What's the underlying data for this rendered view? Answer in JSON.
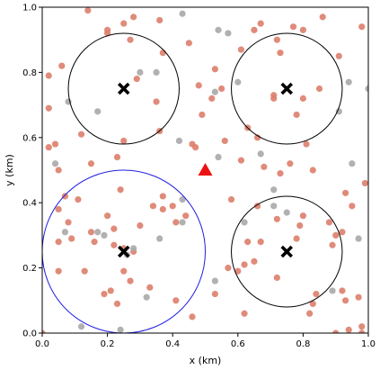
{
  "chart_data": {
    "type": "scatter",
    "title": "",
    "xlabel": "x (km)",
    "ylabel": "y (km)",
    "xlim": [
      0.0,
      1.0
    ],
    "ylim": [
      0.0,
      1.0
    ],
    "xticks": [
      "0.0",
      "0.2",
      "0.4",
      "0.6",
      "0.8",
      "1.0"
    ],
    "yticks": [
      "0.0",
      "0.2",
      "0.4",
      "0.6",
      "0.8",
      "1.0"
    ],
    "grid": false,
    "legend": null,
    "colors": {
      "salmon": "#dd7e6b",
      "gray": "#a9a9a9",
      "black": "#000000",
      "blue": "#1f1fe0",
      "red": "#ee1111"
    },
    "salmon_points": [
      [
        0.14,
        0.99
      ],
      [
        0.28,
        0.97
      ],
      [
        0.36,
        0.96
      ],
      [
        0.25,
        0.95
      ],
      [
        0.2,
        0.93
      ],
      [
        0.2,
        0.92
      ],
      [
        0.27,
        0.9
      ],
      [
        0.45,
        0.89
      ],
      [
        0.06,
        0.82
      ],
      [
        0.02,
        0.79
      ],
      [
        0.29,
        0.78
      ],
      [
        0.37,
        0.86
      ],
      [
        0.48,
        0.76
      ],
      [
        0.52,
        0.72
      ],
      [
        0.49,
        0.67
      ],
      [
        0.55,
        0.75
      ],
      [
        0.53,
        0.81
      ],
      [
        0.65,
        0.93
      ],
      [
        0.67,
        0.95
      ],
      [
        0.77,
        0.94
      ],
      [
        0.72,
        0.9
      ],
      [
        0.73,
        0.86
      ],
      [
        0.8,
        0.93
      ],
      [
        0.86,
        0.97
      ],
      [
        0.91,
        0.85
      ],
      [
        0.98,
        0.94
      ],
      [
        0.61,
        0.87
      ],
      [
        0.71,
        0.73
      ],
      [
        0.71,
        0.72
      ],
      [
        0.8,
        0.72
      ],
      [
        0.85,
        0.75
      ],
      [
        0.78,
        0.67
      ],
      [
        0.63,
        0.63
      ],
      [
        0.66,
        0.6
      ],
      [
        0.81,
        0.58
      ],
      [
        0.83,
        0.5
      ],
      [
        0.76,
        0.52
      ],
      [
        0.02,
        0.69
      ],
      [
        0.04,
        0.58
      ],
      [
        0.02,
        0.57
      ],
      [
        0.12,
        0.61
      ],
      [
        0.25,
        0.59
      ],
      [
        0.35,
        0.71
      ],
      [
        0.36,
        0.62
      ],
      [
        0.46,
        0.58
      ],
      [
        0.47,
        0.57
      ],
      [
        0.23,
        0.54
      ],
      [
        0.56,
        0.59
      ],
      [
        0.15,
        0.52
      ],
      [
        0.05,
        0.5
      ],
      [
        0.07,
        0.42
      ],
      [
        0.11,
        0.41
      ],
      [
        0.05,
        0.38
      ],
      [
        0.08,
        0.34
      ],
      [
        0.05,
        0.28
      ],
      [
        0.09,
        0.29
      ],
      [
        0.15,
        0.31
      ],
      [
        0.16,
        0.28
      ],
      [
        0.22,
        0.32
      ],
      [
        0.24,
        0.44
      ],
      [
        0.2,
        0.36
      ],
      [
        0.3,
        0.33
      ],
      [
        0.34,
        0.39
      ],
      [
        0.37,
        0.38
      ],
      [
        0.37,
        0.42
      ],
      [
        0.41,
        0.34
      ],
      [
        0.4,
        0.39
      ],
      [
        0.44,
        0.36
      ],
      [
        0.22,
        0.27
      ],
      [
        0.25,
        0.26
      ],
      [
        0.28,
        0.25
      ],
      [
        0.25,
        0.19
      ],
      [
        0.27,
        0.16
      ],
      [
        0.19,
        0.12
      ],
      [
        0.21,
        0.13
      ],
      [
        0.05,
        0.19
      ],
      [
        0.13,
        0.19
      ],
      [
        0.23,
        0.09
      ],
      [
        0.41,
        0.1
      ],
      [
        0.33,
        0.14
      ],
      [
        0.61,
        0.53
      ],
      [
        0.68,
        0.51
      ],
      [
        0.73,
        0.49
      ],
      [
        0.58,
        0.41
      ],
      [
        0.66,
        0.39
      ],
      [
        0.8,
        0.36
      ],
      [
        0.79,
        0.33
      ],
      [
        0.72,
        0.35
      ],
      [
        0.63,
        0.28
      ],
      [
        0.67,
        0.28
      ],
      [
        0.78,
        0.29
      ],
      [
        0.62,
        0.21
      ],
      [
        0.65,
        0.22
      ],
      [
        0.57,
        0.2
      ],
      [
        0.6,
        0.19
      ],
      [
        0.72,
        0.17
      ],
      [
        0.84,
        0.12
      ],
      [
        0.83,
        0.09
      ],
      [
        0.82,
        0.06
      ],
      [
        0.92,
        0.13
      ],
      [
        0.93,
        0.1
      ],
      [
        0.99,
        0.46
      ],
      [
        0.93,
        0.43
      ],
      [
        0.95,
        0.39
      ],
      [
        0.88,
        0.34
      ],
      [
        0.92,
        0.31
      ],
      [
        0.9,
        0.3
      ],
      [
        0.89,
        0.27
      ],
      [
        0.97,
        0.11
      ],
      [
        0.98,
        0.02
      ],
      [
        0.94,
        0.01
      ],
      [
        0.9,
        0.0
      ],
      [
        0.62,
        0.06
      ],
      [
        0.53,
        0.12
      ],
      [
        0.46,
        0.05
      ],
      [
        0.0,
        0.0
      ],
      [
        0.98,
        0.0
      ]
    ],
    "gray_points": [
      [
        0.43,
        0.98
      ],
      [
        0.54,
        0.93
      ],
      [
        0.57,
        0.92
      ],
      [
        0.3,
        0.8
      ],
      [
        0.35,
        0.8
      ],
      [
        0.6,
        0.77
      ],
      [
        0.94,
        0.77
      ],
      [
        0.53,
        0.74
      ],
      [
        1.0,
        0.75
      ],
      [
        0.08,
        0.71
      ],
      [
        0.17,
        0.68
      ],
      [
        0.91,
        0.68
      ],
      [
        0.42,
        0.59
      ],
      [
        0.54,
        0.54
      ],
      [
        0.67,
        0.55
      ],
      [
        0.04,
        0.52
      ],
      [
        0.95,
        0.52
      ],
      [
        0.71,
        0.44
      ],
      [
        0.71,
        0.39
      ],
      [
        0.75,
        0.37
      ],
      [
        0.43,
        0.41
      ],
      [
        0.62,
        0.34
      ],
      [
        0.43,
        0.34
      ],
      [
        0.07,
        0.31
      ],
      [
        0.17,
        0.31
      ],
      [
        0.19,
        0.3
      ],
      [
        0.36,
        0.29
      ],
      [
        0.97,
        0.29
      ],
      [
        0.28,
        0.26
      ],
      [
        0.26,
        0.24
      ],
      [
        0.53,
        0.16
      ],
      [
        0.32,
        0.11
      ],
      [
        0.89,
        0.13
      ],
      [
        0.12,
        0.02
      ],
      [
        0.24,
        0.01
      ]
    ],
    "centers": [
      [
        0.25,
        0.75
      ],
      [
        0.75,
        0.75
      ],
      [
        0.25,
        0.25
      ],
      [
        0.75,
        0.25
      ]
    ],
    "circle_radius": 0.17,
    "circles": [
      {
        "x": 0.25,
        "y": 0.75,
        "r": 0.17,
        "color": "#000000"
      },
      {
        "x": 0.75,
        "y": 0.75,
        "r": 0.17,
        "color": "#000000"
      },
      {
        "x": 0.25,
        "y": 0.25,
        "r": 0.25,
        "color": "#1f1fe0"
      },
      {
        "x": 0.75,
        "y": 0.25,
        "r": 0.17,
        "color": "#000000"
      }
    ],
    "triangle": [
      0.5,
      0.5
    ]
  }
}
